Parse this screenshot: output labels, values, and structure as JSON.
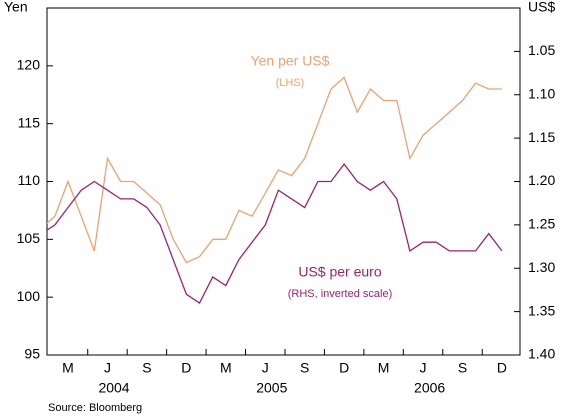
{
  "chart_data": {
    "type": "line",
    "y_axis_label": "Yen",
    "y2_axis_label": "US$",
    "source": "Source: Bloomberg",
    "x": [
      "2004-01",
      "2004-02",
      "2004-03",
      "2004-04",
      "2004-05",
      "2004-06",
      "2004-07",
      "2004-08",
      "2004-09",
      "2004-10",
      "2004-11",
      "2004-12",
      "2005-01",
      "2005-02",
      "2005-03",
      "2005-04",
      "2005-05",
      "2005-06",
      "2005-07",
      "2005-08",
      "2005-09",
      "2005-10",
      "2005-11",
      "2005-12",
      "2006-01",
      "2006-02",
      "2006-03",
      "2006-04",
      "2006-05",
      "2006-06",
      "2006-07",
      "2006-08",
      "2006-09",
      "2006-10",
      "2006-11",
      "2006-12"
    ],
    "month_labels": [
      "M",
      "J",
      "S",
      "D",
      "M",
      "J",
      "S",
      "D",
      "M",
      "J",
      "S",
      "D"
    ],
    "year_labels": [
      "2004",
      "2005",
      "2006"
    ],
    "series": [
      {
        "name": "Yen per US$",
        "note": "(LHS)",
        "color": "#f0a070",
        "axis": "y",
        "values": [
          106,
          107,
          110,
          107,
          104,
          112,
          110,
          110,
          109,
          108,
          105,
          103,
          103.5,
          105,
          105,
          107.5,
          107,
          109,
          111,
          110.5,
          112,
          115,
          118,
          119,
          116,
          118,
          117,
          117,
          112,
          114,
          115,
          116,
          117,
          118.5,
          118,
          118
        ]
      },
      {
        "name": "US$ per euro",
        "note": "(RHS, inverted scale)",
        "color": "#a0206e",
        "axis": "y2",
        "values": [
          1.26,
          1.25,
          1.23,
          1.21,
          1.2,
          1.21,
          1.22,
          1.22,
          1.23,
          1.25,
          1.29,
          1.33,
          1.34,
          1.31,
          1.32,
          1.29,
          1.27,
          1.25,
          1.21,
          1.22,
          1.23,
          1.2,
          1.2,
          1.18,
          1.2,
          1.21,
          1.2,
          1.22,
          1.28,
          1.27,
          1.27,
          1.28,
          1.28,
          1.28,
          1.26,
          1.28
        ]
      }
    ],
    "ylim": [
      95,
      125
    ],
    "yticks": [
      95,
      100,
      105,
      110,
      115,
      120
    ],
    "y2lim": [
      1.4,
      1.0
    ],
    "y2ticks": [
      {
        "value": 1.4,
        "label": "1.40"
      },
      1.35,
      {
        "value": 1.3,
        "label": "1.30"
      },
      1.25,
      {
        "value": 1.2,
        "label": "1.20"
      },
      1.15,
      {
        "value": 1.1,
        "label": "1.10"
      },
      1.05
    ]
  }
}
